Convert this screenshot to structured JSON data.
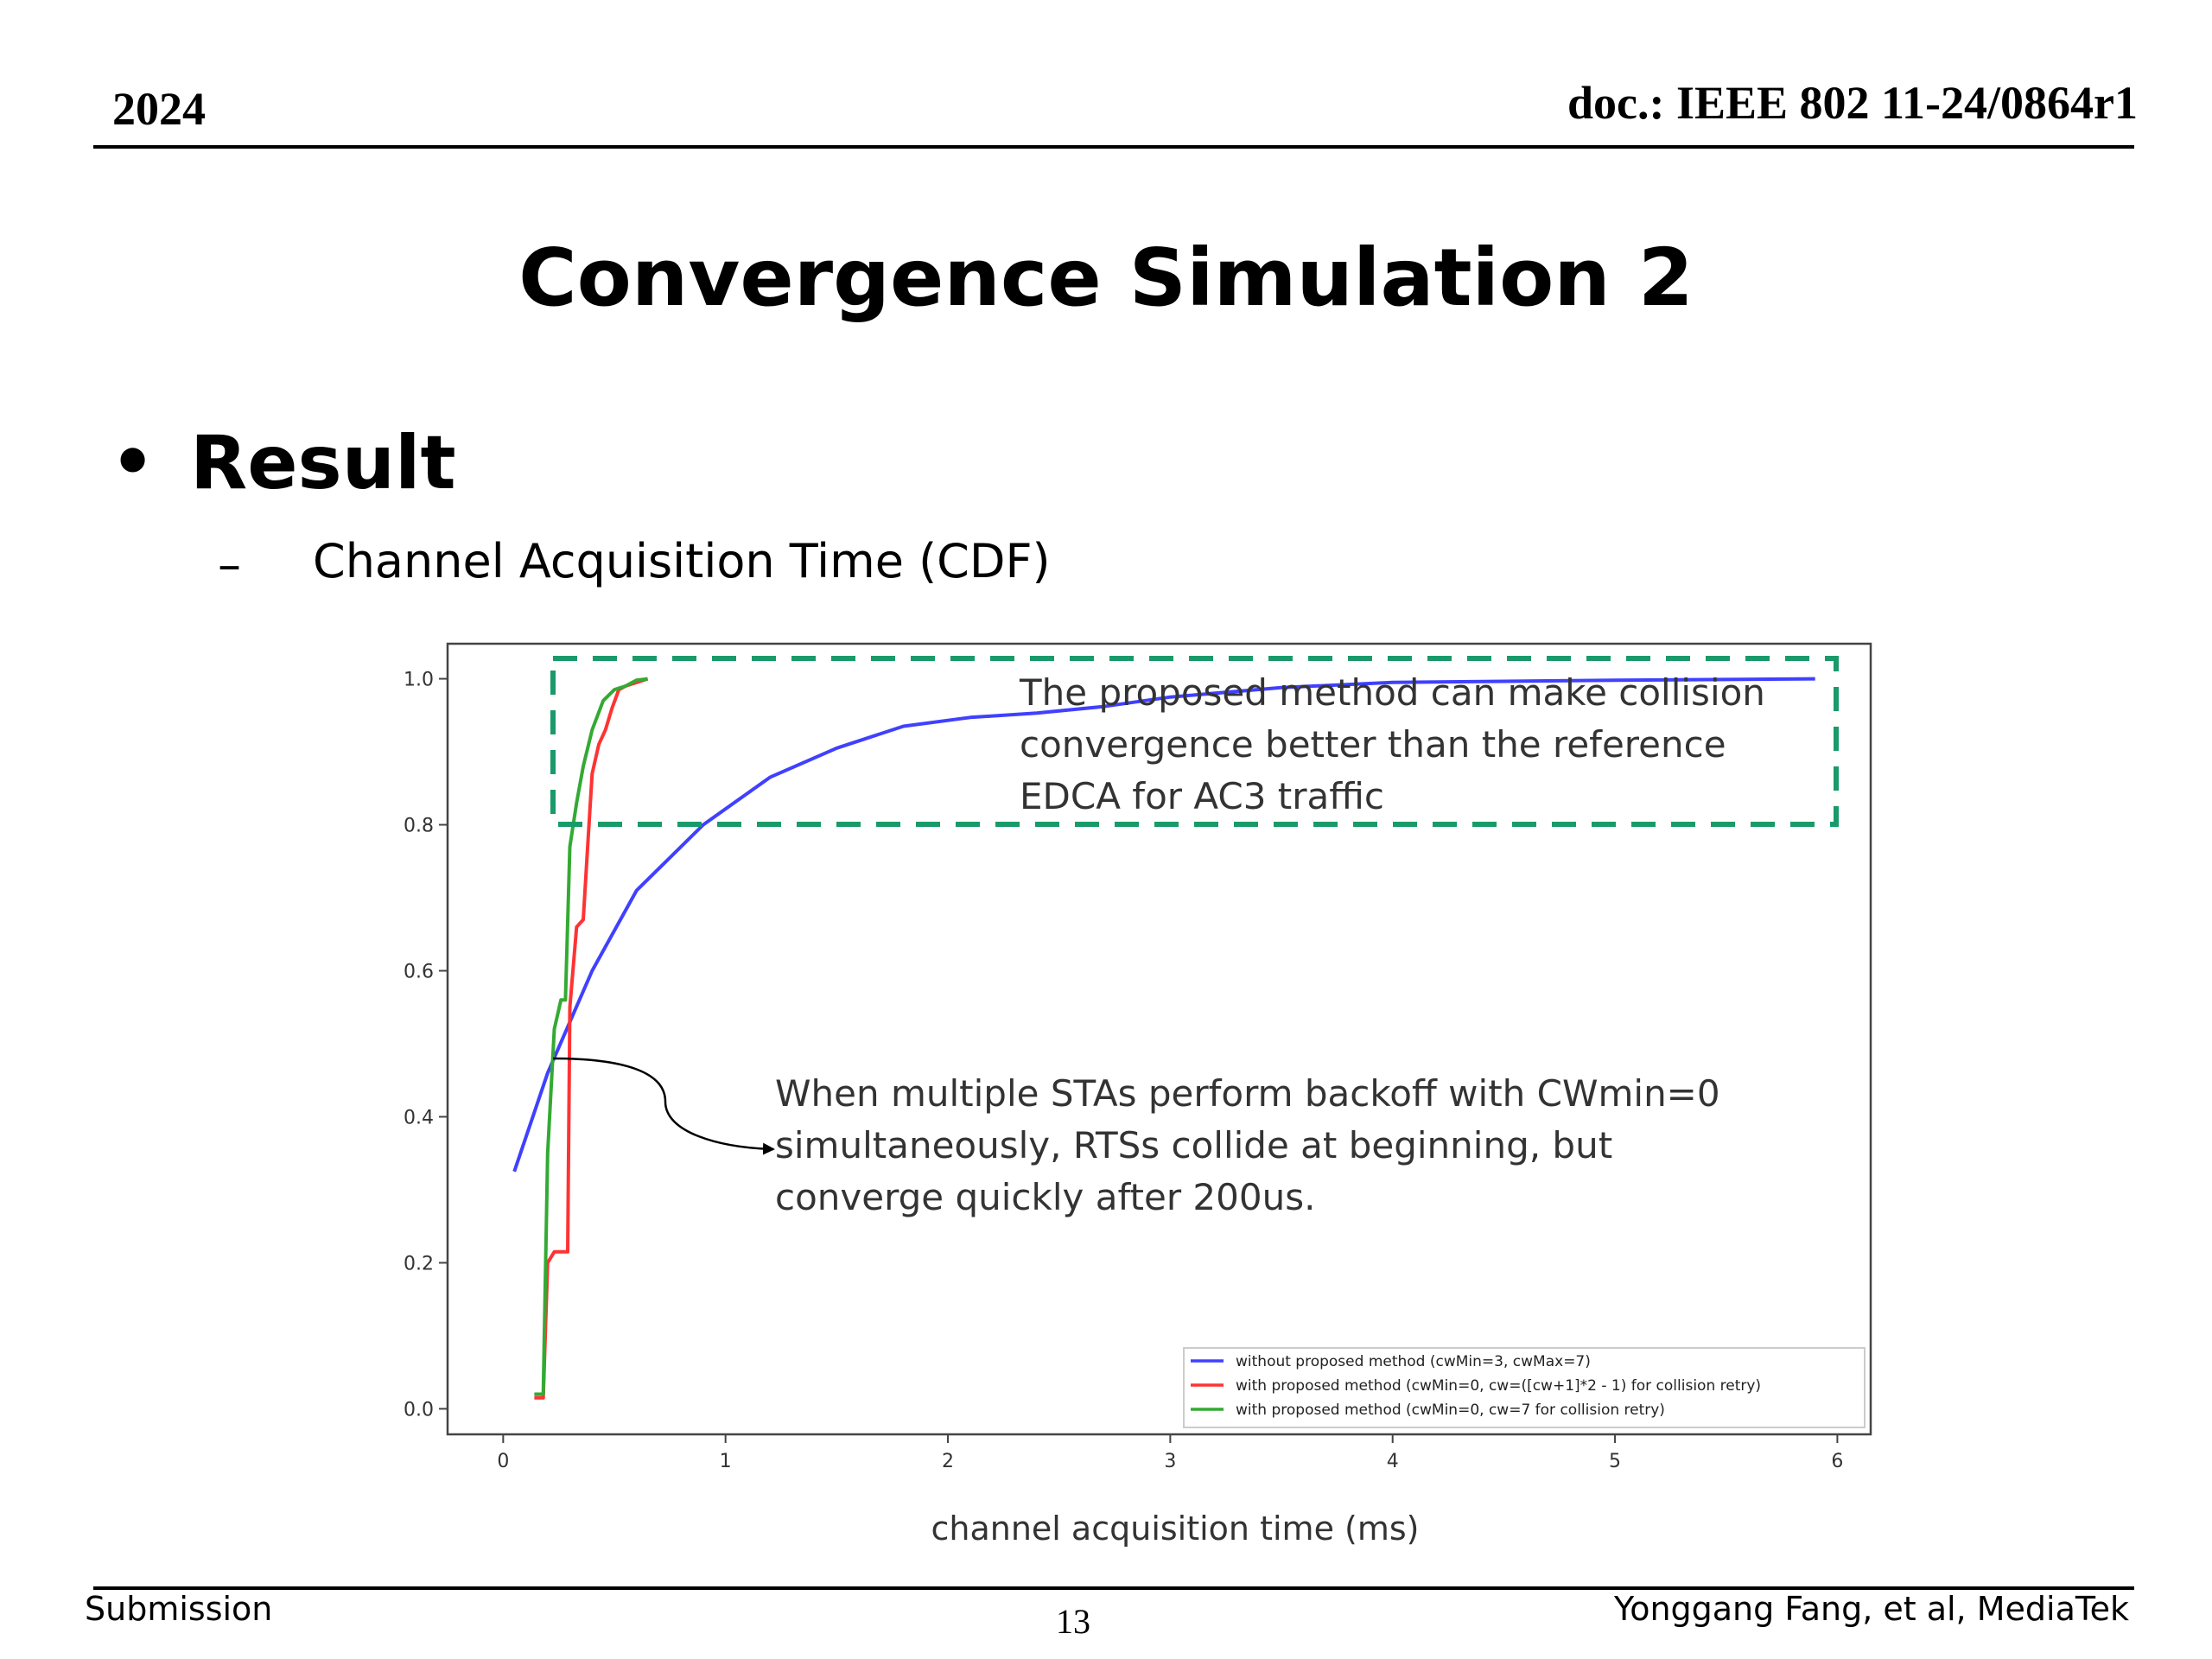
{
  "header": {
    "year": "2024",
    "doc": "doc.: IEEE 802 11-24/0864r1"
  },
  "title": "Convergence Simulation 2",
  "bullet": {
    "text": "Result",
    "sub_dash": "–",
    "sub_text": "Channel Acquisition Time (CDF)"
  },
  "footer": {
    "left": "Submission",
    "page": "13",
    "right": "Yonggang Fang, et al, MediaTek"
  },
  "chart_data": {
    "type": "line",
    "title": "",
    "xlabel": "channel acquisition time (ms)",
    "ylabel": "",
    "xlim": [
      -0.25,
      6.15
    ],
    "ylim": [
      -0.035,
      1.048
    ],
    "xticks": [
      0,
      1,
      2,
      3,
      4,
      5,
      6
    ],
    "yticks": [
      0.0,
      0.2,
      0.4,
      0.6,
      0.8,
      1.0
    ],
    "xtick_labels": [
      "0",
      "1",
      "2",
      "3",
      "4",
      "5",
      "6"
    ],
    "ytick_labels": [
      "0.0",
      "0.2",
      "0.4",
      "0.6",
      "0.8",
      "1.0"
    ],
    "grid": false,
    "legend_position": "lower-right",
    "series": [
      {
        "name": "without proposed method (cwMin=3, cwMax=7)",
        "color": "#4040ff",
        "x": [
          0.05,
          0.2,
          0.4,
          0.6,
          0.9,
          1.2,
          1.5,
          1.8,
          2.1,
          2.4,
          2.7,
          3.0,
          3.5,
          4.0,
          5.0,
          5.9
        ],
        "y": [
          0.325,
          0.46,
          0.6,
          0.71,
          0.8,
          0.865,
          0.905,
          0.935,
          0.947,
          0.953,
          0.962,
          0.975,
          0.988,
          0.995,
          0.998,
          1.0
        ]
      },
      {
        "name": "with proposed method (cwMin=0, cw=([cw+1]*2 - 1) for collision retry)",
        "color": "#ff3333",
        "x": [
          0.14,
          0.18,
          0.2,
          0.23,
          0.29,
          0.3,
          0.33,
          0.36,
          0.38,
          0.4,
          0.43,
          0.46,
          0.49,
          0.52,
          0.55,
          0.6,
          0.65
        ],
        "y": [
          0.015,
          0.015,
          0.2,
          0.215,
          0.215,
          0.55,
          0.66,
          0.67,
          0.77,
          0.87,
          0.91,
          0.93,
          0.96,
          0.985,
          0.99,
          0.995,
          1.0
        ]
      },
      {
        "name": "with proposed method (cwMin=0, cw=7 for collision retry)",
        "color": "#33aa33",
        "x": [
          0.14,
          0.18,
          0.2,
          0.23,
          0.26,
          0.28,
          0.3,
          0.33,
          0.36,
          0.4,
          0.45,
          0.5,
          0.55,
          0.6,
          0.65
        ],
        "y": [
          0.02,
          0.02,
          0.35,
          0.52,
          0.56,
          0.56,
          0.77,
          0.83,
          0.88,
          0.93,
          0.97,
          0.985,
          0.99,
          0.998,
          1.0
        ]
      }
    ],
    "annotations": [
      {
        "lines": [
          "The proposed method can make collision",
          "convergence better than the reference",
          "EDCA for AC3 traffic"
        ]
      },
      {
        "lines": [
          "When multiple STAs perform backoff with CWmin=0",
          "simultaneously, RTSs collide at beginning, but",
          "converge quickly after 200us."
        ]
      }
    ],
    "highlight_box_color": "#1a9a6a"
  }
}
